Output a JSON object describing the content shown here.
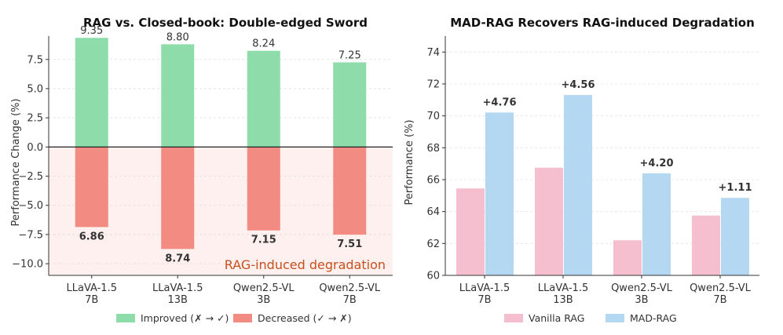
{
  "chart_data": [
    {
      "type": "bar",
      "title": "RAG vs. Closed-book: Double-edged Sword",
      "xlabel": "",
      "ylabel": "Performance Change (%)",
      "ylim": [
        -11,
        9.5
      ],
      "yticks": [
        -10.0,
        -7.5,
        -5.0,
        -2.5,
        0.0,
        2.5,
        5.0,
        7.5
      ],
      "ytick_labels": [
        "−10.0",
        "−7.5",
        "−5.0",
        "−2.5",
        "0.0",
        "2.5",
        "5.0",
        "7.5"
      ],
      "categories": [
        "LLaVA-1.5\n7B",
        "LLaVA-1.5\n13B",
        "Qwen2.5-VL\n3B",
        "Qwen2.5-VL\n7B"
      ],
      "series": [
        {
          "name": "Improved (✗ → ✓)",
          "color": "#8fdcab",
          "values": [
            9.35,
            8.8,
            8.24,
            7.25
          ],
          "labels": [
            "9.35",
            "8.80",
            "8.24",
            "7.25"
          ]
        },
        {
          "name": "Decreased (✓ → ✗)",
          "color": "#f28b81",
          "values": [
            -6.86,
            -8.74,
            -7.15,
            -7.51
          ],
          "labels": [
            "6.86",
            "8.74",
            "7.15",
            "7.51"
          ]
        }
      ],
      "annotation": "RAG-induced degradation",
      "annotation_color": "#c8501e",
      "grid": true,
      "legend_position": "bottom"
    },
    {
      "type": "bar",
      "title": "MAD-RAG Recovers RAG-induced Degradation",
      "xlabel": "",
      "ylabel": "Performance (%)",
      "ylim": [
        60,
        75
      ],
      "yticks": [
        60,
        62,
        64,
        66,
        68,
        70,
        72,
        74
      ],
      "ytick_labels": [
        "60",
        "62",
        "64",
        "66",
        "68",
        "70",
        "72",
        "74"
      ],
      "categories": [
        "LLaVA-1.5\n7B",
        "LLaVA-1.5\n13B",
        "Qwen2.5-VL\n3B",
        "Qwen2.5-VL\n7B"
      ],
      "series": [
        {
          "name": "Vanilla RAG",
          "color": "#f5bfd0",
          "values": [
            65.45,
            66.75,
            62.2,
            63.75
          ]
        },
        {
          "name": "MAD-RAG",
          "color": "#b5d8f2",
          "values": [
            70.21,
            71.31,
            66.4,
            64.86
          ]
        }
      ],
      "improvement_labels": [
        "+4.76",
        "+4.56",
        "+4.20",
        "+1.11"
      ],
      "grid": true,
      "legend_position": "bottom"
    }
  ]
}
